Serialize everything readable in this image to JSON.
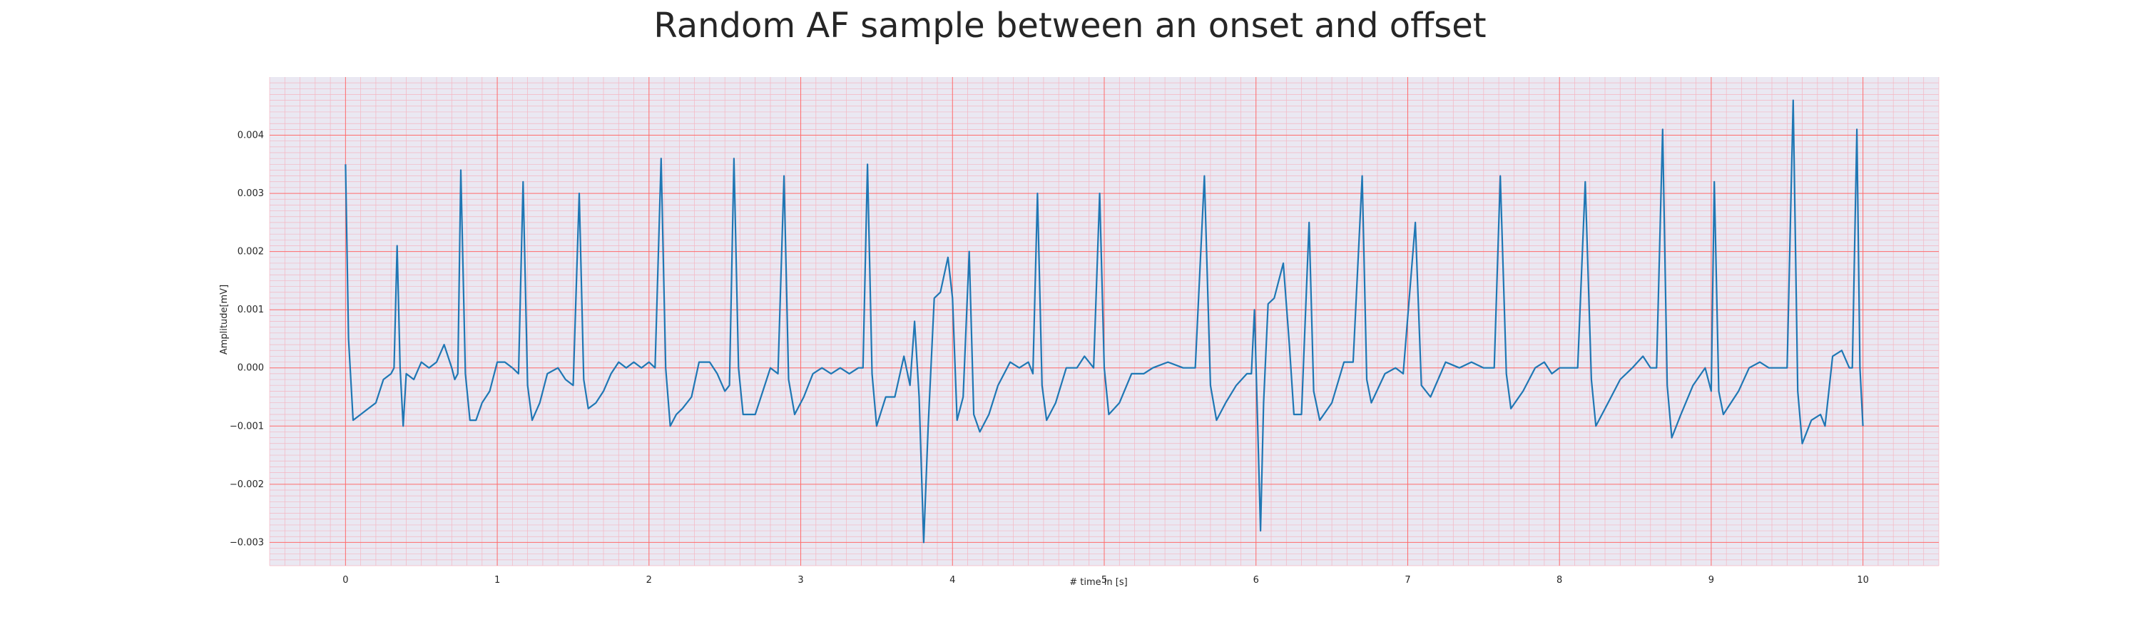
{
  "chart_data": {
    "type": "line",
    "title": "Random AF sample between an onset and offset",
    "xlabel": "# time in [s]",
    "ylabel": "Amplitude[mV]",
    "xlim": [
      -0.5,
      10.5
    ],
    "ylim": [
      -0.0034,
      0.005
    ],
    "x_ticks": [
      0,
      1,
      2,
      3,
      4,
      5,
      6,
      7,
      8,
      9,
      10
    ],
    "x_tick_labels": [
      "0",
      "1",
      "2",
      "3",
      "4",
      "5",
      "6",
      "7",
      "8",
      "9",
      "10"
    ],
    "y_ticks": [
      -0.003,
      -0.002,
      -0.001,
      0.0,
      0.001,
      0.002,
      0.003,
      0.004
    ],
    "y_tick_labels": [
      "−0.003",
      "−0.002",
      "−0.001",
      "0.000",
      "0.001",
      "0.002",
      "0.003",
      "0.004"
    ],
    "grid": "on (major red lines, minor pink lines)",
    "colors": {
      "line": "#1f77b4",
      "background": "#eae8f2",
      "major_grid": "#ff6b6b",
      "minor_grid": "#f4b6c2"
    },
    "series": [
      {
        "points": [
          [
            0.0,
            0.0035
          ],
          [
            0.02,
            0.0005
          ],
          [
            0.05,
            -0.0009
          ],
          [
            0.1,
            -0.0008
          ],
          [
            0.15,
            -0.0007
          ],
          [
            0.2,
            -0.0006
          ],
          [
            0.25,
            -0.0002
          ],
          [
            0.3,
            -0.0001
          ],
          [
            0.32,
            0.0
          ],
          [
            0.34,
            0.0021
          ],
          [
            0.36,
            0.0
          ],
          [
            0.38,
            -0.001
          ],
          [
            0.4,
            -0.0001
          ],
          [
            0.45,
            -0.0002
          ],
          [
            0.5,
            0.0001
          ],
          [
            0.55,
            0.0
          ],
          [
            0.6,
            0.0001
          ],
          [
            0.65,
            0.0004
          ],
          [
            0.7,
            0.0
          ],
          [
            0.72,
            -0.0002
          ],
          [
            0.74,
            -0.0001
          ],
          [
            0.76,
            0.0034
          ],
          [
            0.79,
            -0.0001
          ],
          [
            0.82,
            -0.0009
          ],
          [
            0.86,
            -0.0009
          ],
          [
            0.9,
            -0.0006
          ],
          [
            0.95,
            -0.0004
          ],
          [
            1.0,
            0.0001
          ],
          [
            1.05,
            0.0001
          ],
          [
            1.1,
            0.0
          ],
          [
            1.14,
            -0.0001
          ],
          [
            1.17,
            0.0032
          ],
          [
            1.2,
            -0.0003
          ],
          [
            1.23,
            -0.0009
          ],
          [
            1.28,
            -0.0006
          ],
          [
            1.33,
            -0.0001
          ],
          [
            1.4,
            0.0
          ],
          [
            1.45,
            -0.0002
          ],
          [
            1.5,
            -0.0003
          ],
          [
            1.54,
            0.003
          ],
          [
            1.57,
            -0.0002
          ],
          [
            1.6,
            -0.0007
          ],
          [
            1.65,
            -0.0006
          ],
          [
            1.7,
            -0.0004
          ],
          [
            1.75,
            -0.0001
          ],
          [
            1.8,
            0.0001
          ],
          [
            1.85,
            0.0
          ],
          [
            1.9,
            0.0001
          ],
          [
            1.95,
            0.0
          ],
          [
            2.0,
            0.0001
          ],
          [
            2.04,
            0.0
          ],
          [
            2.08,
            0.0036
          ],
          [
            2.11,
            0.0
          ],
          [
            2.14,
            -0.001
          ],
          [
            2.18,
            -0.0008
          ],
          [
            2.22,
            -0.0007
          ],
          [
            2.28,
            -0.0005
          ],
          [
            2.33,
            0.0001
          ],
          [
            2.4,
            0.0001
          ],
          [
            2.45,
            -0.0001
          ],
          [
            2.5,
            -0.0004
          ],
          [
            2.53,
            -0.0003
          ],
          [
            2.56,
            0.0036
          ],
          [
            2.59,
            0.0
          ],
          [
            2.62,
            -0.0008
          ],
          [
            2.7,
            -0.0008
          ],
          [
            2.75,
            -0.0004
          ],
          [
            2.8,
            0.0
          ],
          [
            2.85,
            -0.0001
          ],
          [
            2.89,
            0.0033
          ],
          [
            2.92,
            -0.0002
          ],
          [
            2.96,
            -0.0008
          ],
          [
            3.02,
            -0.0005
          ],
          [
            3.08,
            -0.0001
          ],
          [
            3.14,
            0.0
          ],
          [
            3.2,
            -0.0001
          ],
          [
            3.26,
            0.0
          ],
          [
            3.32,
            -0.0001
          ],
          [
            3.38,
            0.0
          ],
          [
            3.41,
            0.0
          ],
          [
            3.44,
            0.0035
          ],
          [
            3.47,
            -0.0001
          ],
          [
            3.5,
            -0.001
          ],
          [
            3.56,
            -0.0005
          ],
          [
            3.62,
            -0.0005
          ],
          [
            3.68,
            0.0002
          ],
          [
            3.72,
            -0.0003
          ],
          [
            3.75,
            0.0008
          ],
          [
            3.78,
            -0.0005
          ],
          [
            3.81,
            -0.003
          ],
          [
            3.84,
            -0.001
          ],
          [
            3.88,
            0.0012
          ],
          [
            3.92,
            0.0013
          ],
          [
            3.97,
            0.0019
          ],
          [
            4.0,
            0.0012
          ],
          [
            4.03,
            -0.0009
          ],
          [
            4.07,
            -0.0005
          ],
          [
            4.11,
            0.002
          ],
          [
            4.14,
            -0.0008
          ],
          [
            4.18,
            -0.0011
          ],
          [
            4.24,
            -0.0008
          ],
          [
            4.3,
            -0.0003
          ],
          [
            4.38,
            0.0001
          ],
          [
            4.44,
            0.0
          ],
          [
            4.5,
            0.0001
          ],
          [
            4.53,
            -0.0001
          ],
          [
            4.56,
            0.003
          ],
          [
            4.59,
            -0.0003
          ],
          [
            4.62,
            -0.0009
          ],
          [
            4.68,
            -0.0006
          ],
          [
            4.75,
            0.0
          ],
          [
            4.82,
            0.0
          ],
          [
            4.87,
            0.0002
          ],
          [
            4.93,
            0.0
          ],
          [
            4.97,
            0.003
          ],
          [
            5.0,
            0.0
          ],
          [
            5.03,
            -0.0008
          ],
          [
            5.1,
            -0.0006
          ],
          [
            5.18,
            -0.0001
          ],
          [
            5.26,
            -0.0001
          ],
          [
            5.32,
            0.0
          ],
          [
            5.42,
            0.0001
          ],
          [
            5.52,
            0.0
          ],
          [
            5.6,
            0.0
          ],
          [
            5.66,
            0.0033
          ],
          [
            5.7,
            -0.0003
          ],
          [
            5.74,
            -0.0009
          ],
          [
            5.8,
            -0.0006
          ],
          [
            5.87,
            -0.0003
          ],
          [
            5.94,
            -0.0001
          ],
          [
            5.97,
            -0.0001
          ],
          [
            5.99,
            0.001
          ],
          [
            6.01,
            -0.0009
          ],
          [
            6.03,
            -0.0028
          ],
          [
            6.05,
            -0.0006
          ],
          [
            6.08,
            0.0011
          ],
          [
            6.12,
            0.0012
          ],
          [
            6.18,
            0.0018
          ],
          [
            6.22,
            0.0004
          ],
          [
            6.25,
            -0.0008
          ],
          [
            6.3,
            -0.0008
          ],
          [
            6.35,
            0.0025
          ],
          [
            6.38,
            -0.0004
          ],
          [
            6.42,
            -0.0009
          ],
          [
            6.5,
            -0.0006
          ],
          [
            6.58,
            0.0001
          ],
          [
            6.64,
            0.0001
          ],
          [
            6.7,
            0.0033
          ],
          [
            6.73,
            -0.0002
          ],
          [
            6.76,
            -0.0006
          ],
          [
            6.85,
            -0.0001
          ],
          [
            6.92,
            0.0
          ],
          [
            6.97,
            -0.0001
          ],
          [
            7.05,
            0.0025
          ],
          [
            7.09,
            -0.0003
          ],
          [
            7.15,
            -0.0005
          ],
          [
            7.25,
            0.0001
          ],
          [
            7.34,
            0.0
          ],
          [
            7.42,
            0.0001
          ],
          [
            7.5,
            0.0
          ],
          [
            7.57,
            0.0
          ],
          [
            7.61,
            0.0033
          ],
          [
            7.65,
            -0.0001
          ],
          [
            7.68,
            -0.0007
          ],
          [
            7.76,
            -0.0004
          ],
          [
            7.84,
            0.0
          ],
          [
            7.9,
            0.0001
          ],
          [
            7.95,
            -0.0001
          ],
          [
            8.0,
            0.0
          ],
          [
            8.05,
            0.0
          ],
          [
            8.12,
            0.0
          ],
          [
            8.17,
            0.0032
          ],
          [
            8.21,
            -0.0002
          ],
          [
            8.24,
            -0.001
          ],
          [
            8.32,
            -0.0006
          ],
          [
            8.4,
            -0.0002
          ],
          [
            8.48,
            0.0
          ],
          [
            8.55,
            0.0002
          ],
          [
            8.6,
            0.0
          ],
          [
            8.64,
            0.0
          ],
          [
            8.68,
            0.0041
          ],
          [
            8.71,
            -0.0003
          ],
          [
            8.74,
            -0.0012
          ],
          [
            8.8,
            -0.0008
          ],
          [
            8.88,
            -0.0003
          ],
          [
            8.96,
            0.0
          ],
          [
            9.0,
            -0.0004
          ],
          [
            9.02,
            0.0032
          ],
          [
            9.05,
            -0.0004
          ],
          [
            9.08,
            -0.0008
          ],
          [
            9.18,
            -0.0004
          ],
          [
            9.25,
            0.0
          ],
          [
            9.32,
            0.0001
          ],
          [
            9.38,
            0.0
          ],
          [
            9.44,
            0.0
          ],
          [
            9.5,
            0.0
          ],
          [
            9.54,
            0.0046
          ],
          [
            9.57,
            -0.0004
          ],
          [
            9.6,
            -0.0013
          ],
          [
            9.66,
            -0.0009
          ],
          [
            9.72,
            -0.0008
          ],
          [
            9.75,
            -0.001
          ],
          [
            9.8,
            0.0002
          ],
          [
            9.86,
            0.0003
          ],
          [
            9.91,
            0.0
          ],
          [
            9.93,
            0.0
          ],
          [
            9.96,
            0.0041
          ],
          [
            9.98,
            0.0
          ],
          [
            10.0,
            -0.001
          ]
        ]
      }
    ]
  }
}
